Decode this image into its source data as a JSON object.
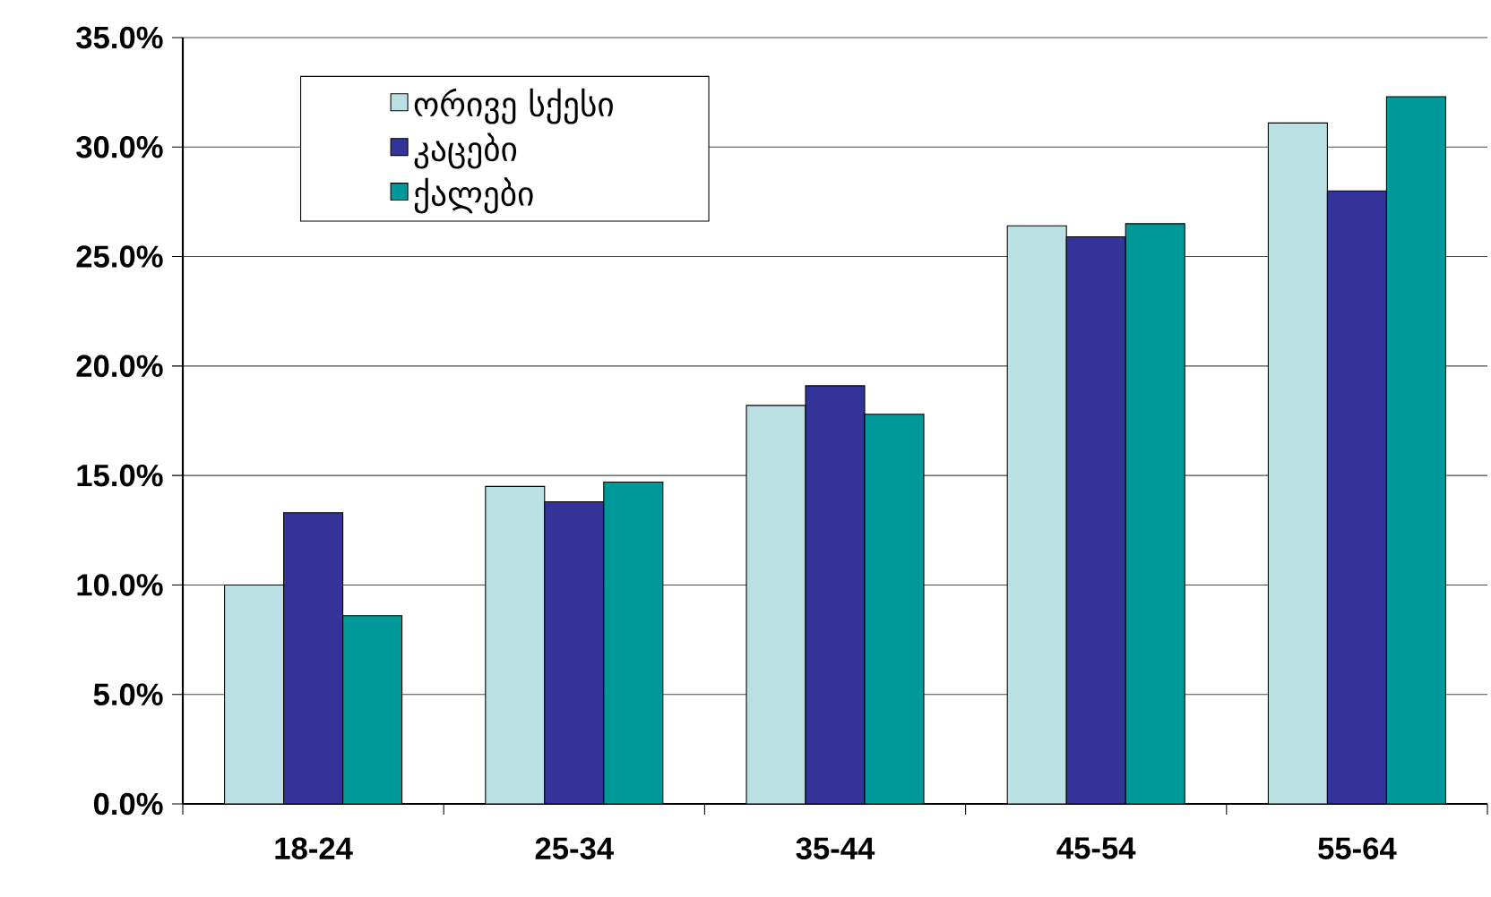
{
  "chart_data": {
    "type": "bar",
    "categories": [
      "18-24",
      "25-34",
      "35-44",
      "45-54",
      "55-64"
    ],
    "series": [
      {
        "name": "ორივე სქესი",
        "color": "#bbe0e3",
        "values": [
          10.0,
          14.5,
          18.2,
          26.4,
          31.1
        ]
      },
      {
        "name": "კაცები",
        "color": "#333399",
        "values": [
          13.3,
          13.8,
          19.1,
          25.9,
          28.0
        ]
      },
      {
        "name": "ქალები",
        "color": "#009999",
        "values": [
          8.6,
          14.7,
          17.8,
          26.5,
          32.3
        ]
      }
    ],
    "ylim": [
      0,
      35
    ],
    "yticks": [
      {
        "value": 0,
        "label": "0.0%"
      },
      {
        "value": 5,
        "label": "5.0%"
      },
      {
        "value": 10,
        "label": "10.0%"
      },
      {
        "value": 15,
        "label": "15.0%"
      },
      {
        "value": 20,
        "label": "20.0%"
      },
      {
        "value": 25,
        "label": "25.0%"
      },
      {
        "value": 30,
        "label": "30.0%"
      },
      {
        "value": 35,
        "label": "35.0%"
      }
    ],
    "grid": "y",
    "legend": "top left"
  }
}
